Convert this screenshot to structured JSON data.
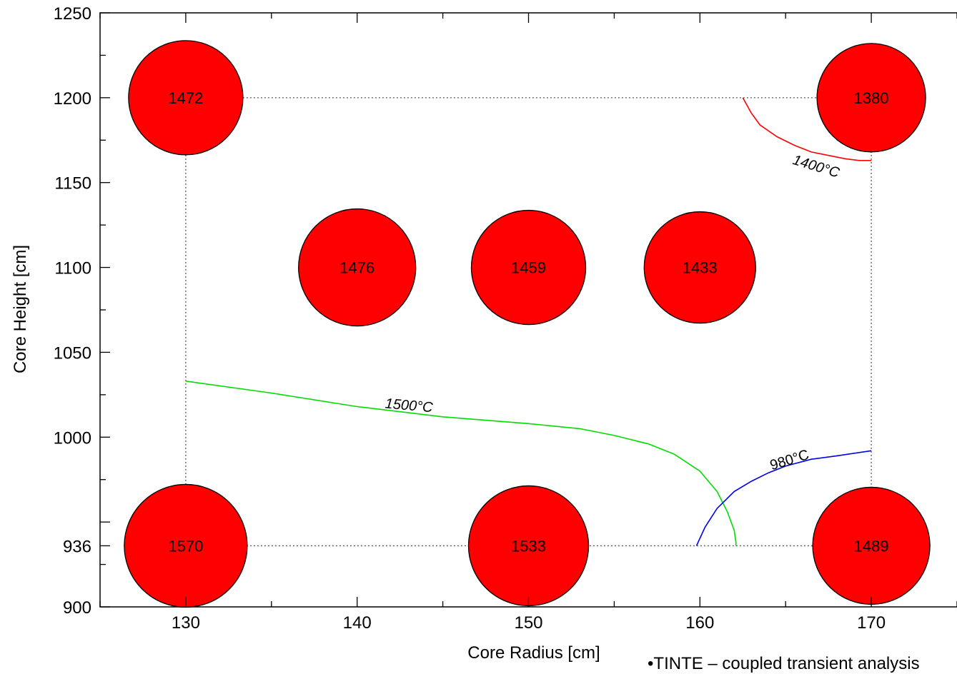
{
  "chart_data": {
    "type": "scatter",
    "title": "",
    "xlabel": "Core Radius [cm]",
    "ylabel": "Core Height [cm]",
    "xlim": [
      125,
      175
    ],
    "ylim": [
      900,
      1250
    ],
    "x_ticks": [
      130,
      140,
      150,
      160,
      170
    ],
    "y_ticks": [
      900,
      936,
      1000,
      1050,
      1100,
      1150,
      1200,
      1250
    ],
    "grid": "dotted reference lines at x=130, x=170, y=936, y=1200",
    "marker_color": "#ff0000",
    "points": [
      {
        "x": 130,
        "y": 1200,
        "label": "1472"
      },
      {
        "x": 170,
        "y": 1200,
        "label": "1380"
      },
      {
        "x": 140,
        "y": 1100,
        "label": "1476"
      },
      {
        "x": 150,
        "y": 1100,
        "label": "1459"
      },
      {
        "x": 160,
        "y": 1100,
        "label": "1433"
      },
      {
        "x": 130,
        "y": 936,
        "label": "1570"
      },
      {
        "x": 150,
        "y": 936,
        "label": "1533"
      },
      {
        "x": 170,
        "y": 936,
        "label": "1489"
      }
    ],
    "series": [
      {
        "label": "1500°C",
        "color": "#00dd00",
        "x": [
          130,
          135,
          140,
          145,
          150,
          153,
          155,
          157,
          158.5,
          160,
          161,
          161.6,
          162,
          162.1,
          162.1
        ],
        "y": [
          1033,
          1026,
          1018,
          1012,
          1008,
          1005,
          1001,
          996,
          990,
          980,
          968,
          956,
          945,
          938,
          936
        ]
      },
      {
        "label": "980°C",
        "color": "#0000ee",
        "x": [
          159.8,
          160.3,
          161,
          162,
          163,
          164,
          165,
          166.5,
          168,
          170
        ],
        "y": [
          936,
          947,
          958,
          968,
          974,
          979,
          983,
          987,
          989,
          992
        ]
      },
      {
        "label": "1400°C",
        "color": "#ff0000",
        "x": [
          162.5,
          163,
          163.5,
          164.5,
          165.5,
          166.5,
          167.5,
          168.5,
          169.3,
          170
        ],
        "y": [
          1200,
          1191,
          1184,
          1177,
          1172,
          1168,
          1166,
          1164,
          1163,
          1163
        ]
      }
    ]
  },
  "footnote": "•TINTE – coupled transient analysis"
}
